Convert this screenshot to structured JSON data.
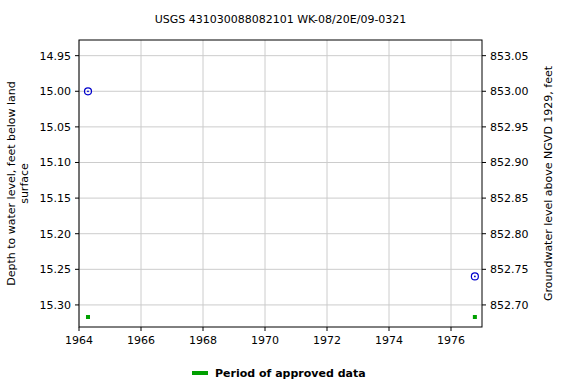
{
  "chart_data": {
    "type": "scatter",
    "title": "USGS 431030088082101 WK-08/20E/09-0321",
    "ylabel": [
      "Depth to water level, feet below land",
      "surface"
    ],
    "y2label": "Groundwater level above NGVD 1929, feet",
    "xlim": [
      1964,
      1977
    ],
    "xticks": [
      1964,
      1966,
      1968,
      1970,
      1972,
      1974,
      1976
    ],
    "ylim": [
      15.331,
      14.928
    ],
    "yticks": [
      14.95,
      {
        "value": 15,
        "label": "15.00"
      },
      15.05,
      {
        "value": 15.1,
        "label": "15.10"
      },
      15.15,
      {
        "value": 15.2,
        "label": "15.20"
      },
      15.25,
      {
        "value": 15.3,
        "label": "15.30"
      }
    ],
    "y2lim": [
      852.669,
      853.072
    ],
    "y2ticks": [
      853.05,
      {
        "value": 853,
        "label": "853.00"
      },
      852.95,
      {
        "value": 852.9,
        "label": "852.90"
      },
      852.85,
      {
        "value": 852.8,
        "label": "852.80"
      },
      852.75,
      {
        "value": 852.7,
        "label": "852.70"
      }
    ],
    "grid": true,
    "legend": "bottom",
    "series": [
      {
        "type": "scatter",
        "color": "#0000cc",
        "marker": "circle",
        "x": [
          1964.29,
          1976.77
        ],
        "values": [
          15.0,
          15.26
        ]
      },
      {
        "type": "period",
        "name": "Period of approved data",
        "color": "#00a000",
        "marker": "square",
        "x": [
          1964.29,
          1976.77
        ]
      }
    ]
  }
}
